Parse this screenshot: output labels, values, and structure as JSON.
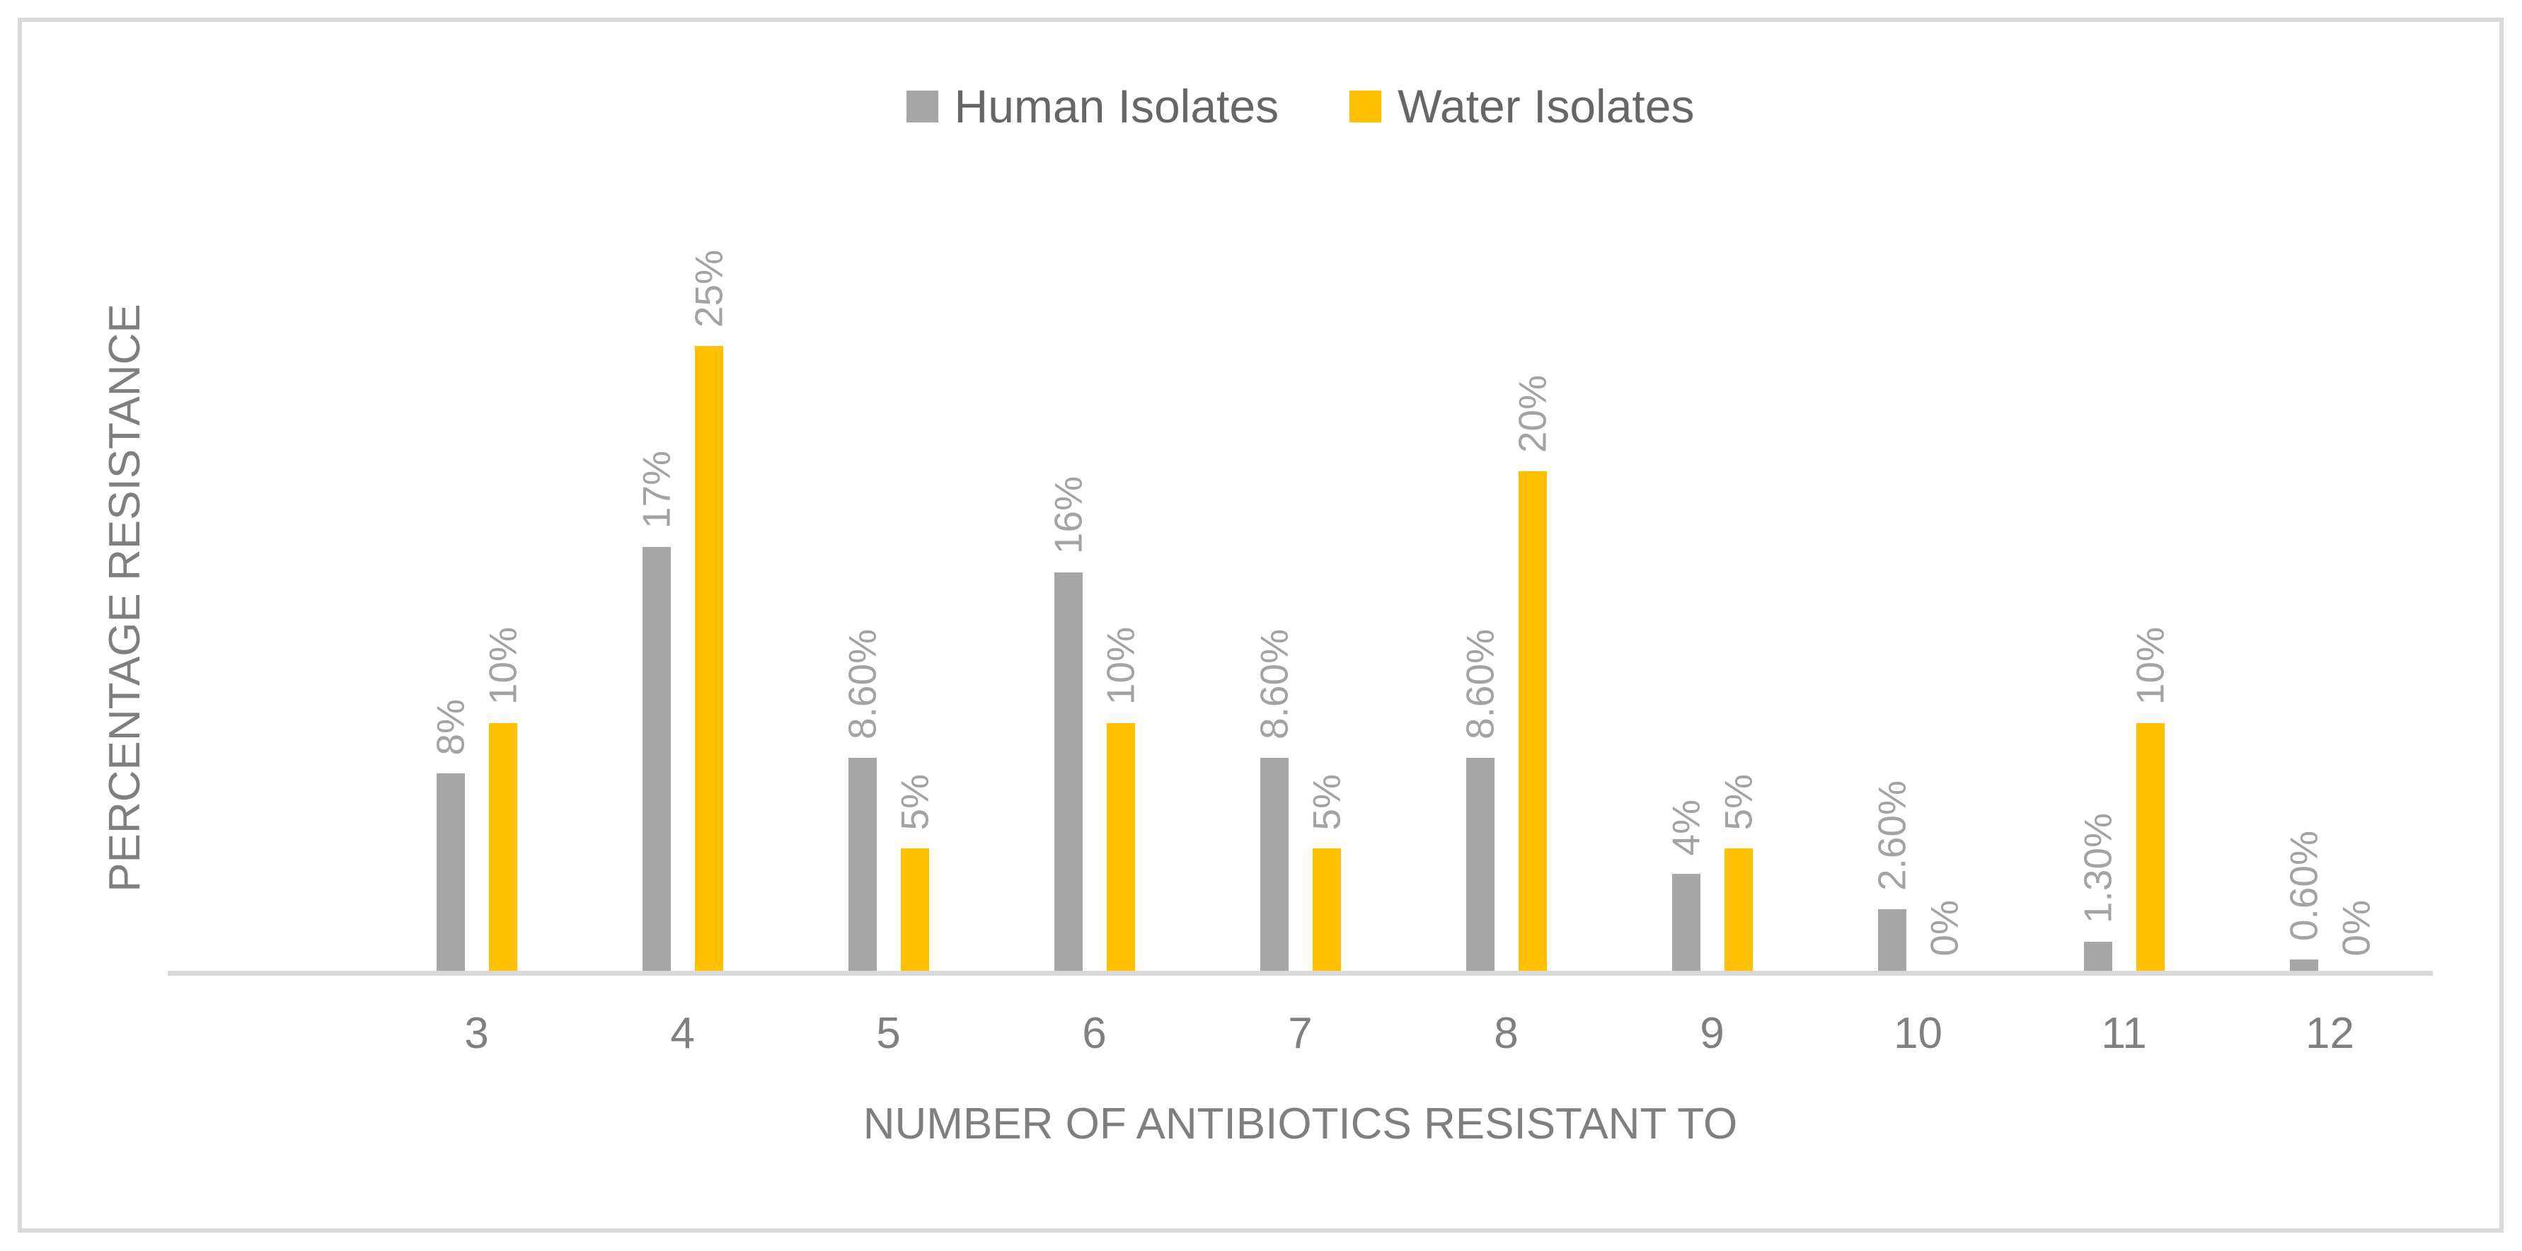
{
  "chart_data": {
    "type": "bar",
    "title": "",
    "xlabel": "NUMBER OF ANTIBIOTICS RESISTANT TO",
    "ylabel": "PERCENTAGE RESISTANCE",
    "categories": [
      "3",
      "4",
      "5",
      "6",
      "7",
      "8",
      "9",
      "10",
      "11",
      "12"
    ],
    "series": [
      {
        "name": "Human Isolates",
        "color": "#A6A6A6",
        "values": [
          8,
          17,
          8.6,
          16,
          8.6,
          8.6,
          4,
          2.6,
          1.3,
          0.6
        ],
        "labels": [
          "8%",
          "17%",
          "8.60%",
          "16%",
          "8.60%",
          "8.60%",
          "4%",
          "2.60%",
          "1.30%",
          "0.60%"
        ]
      },
      {
        "name": "Water Isolates",
        "color": "#FFC000",
        "values": [
          10,
          25,
          5,
          10,
          5,
          20,
          5,
          0,
          10,
          0
        ],
        "labels": [
          "10%",
          "25%",
          "5%",
          "10%",
          "5%",
          "20%",
          "5%",
          "0%",
          "10%",
          "0%"
        ]
      }
    ],
    "ylim": [
      0,
      27.5
    ],
    "grid": false,
    "legend_position": "top",
    "data_labels_rotated_vertical": true,
    "leading_blank_slot": true
  },
  "colors": {
    "background": "#FFFFFF",
    "frame_border": "#D9D9D9",
    "axis_line": "#D9D9D9",
    "tick_label": "#808080",
    "axis_title": "#7F7F7F",
    "data_label": "#A3A3A3",
    "legend_text": "#666666"
  }
}
